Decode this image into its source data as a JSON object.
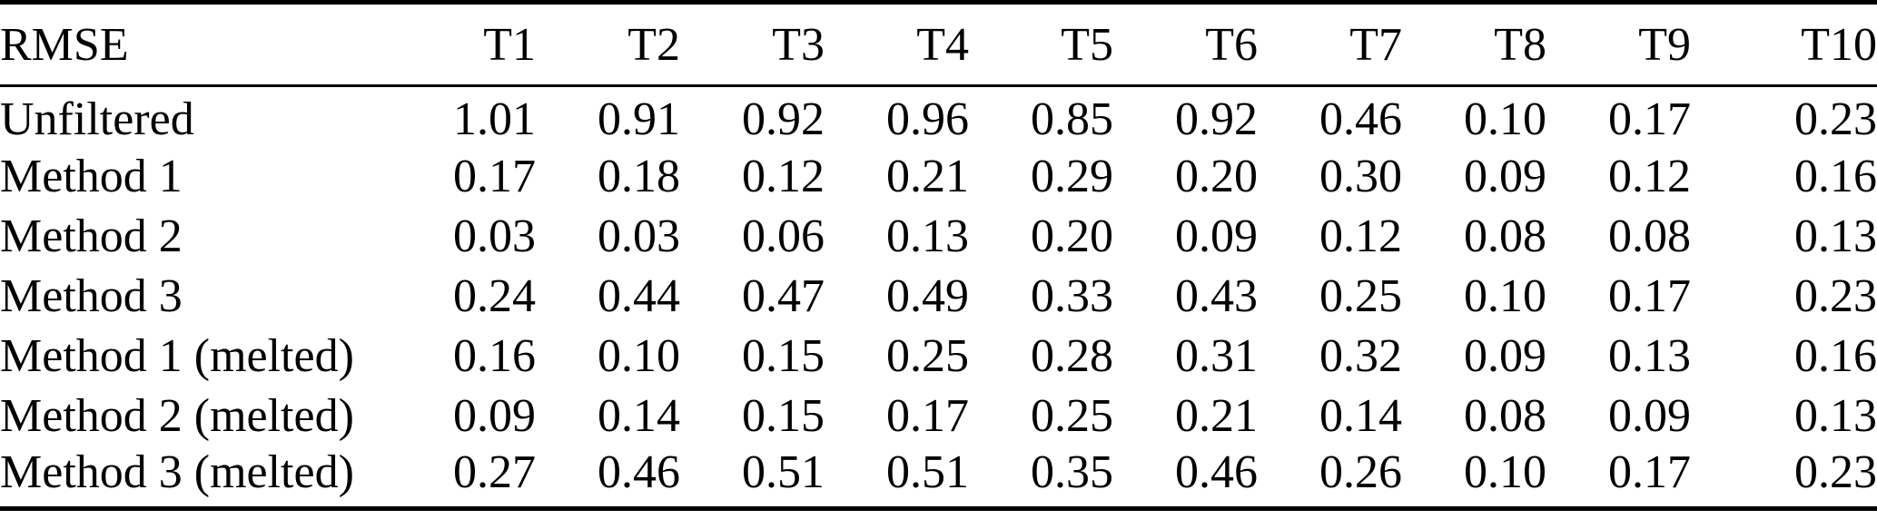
{
  "table": {
    "title": "RMSE",
    "header": [
      "RMSE",
      "T1",
      "T2",
      "T3",
      "T4",
      "T5",
      "T6",
      "T7",
      "T8",
      "T9",
      "T10"
    ],
    "rows": [
      {
        "label": "Unfiltered",
        "values": [
          "1.01",
          "0.91",
          "0.92",
          "0.96",
          "0.85",
          "0.92",
          "0.46",
          "0.10",
          "0.17",
          "0.23"
        ]
      },
      {
        "label": "Method 1",
        "values": [
          "0.17",
          "0.18",
          "0.12",
          "0.21",
          "0.29",
          "0.20",
          "0.30",
          "0.09",
          "0.12",
          "0.16"
        ]
      },
      {
        "label": "Method 2",
        "values": [
          "0.03",
          "0.03",
          "0.06",
          "0.13",
          "0.20",
          "0.09",
          "0.12",
          "0.08",
          "0.08",
          "0.13"
        ]
      },
      {
        "label": "Method 3",
        "values": [
          "0.24",
          "0.44",
          "0.47",
          "0.49",
          "0.33",
          "0.43",
          "0.25",
          "0.10",
          "0.17",
          "0.23"
        ]
      },
      {
        "label": "Method 1 (melted)",
        "values": [
          "0.16",
          "0.10",
          "0.15",
          "0.25",
          "0.28",
          "0.31",
          "0.32",
          "0.09",
          "0.13",
          "0.16"
        ]
      },
      {
        "label": "Method 2 (melted)",
        "values": [
          "0.09",
          "0.14",
          "0.15",
          "0.17",
          "0.25",
          "0.21",
          "0.14",
          "0.08",
          "0.09",
          "0.13"
        ]
      },
      {
        "label": "Method 3 (melted)",
        "values": [
          "0.27",
          "0.46",
          "0.51",
          "0.51",
          "0.35",
          "0.46",
          "0.26",
          "0.10",
          "0.17",
          "0.23"
        ]
      }
    ],
    "colors": {
      "text": "#000000",
      "background": "#ffffff",
      "rule": "#000000"
    }
  },
  "chart_data": {
    "type": "table",
    "title": "RMSE",
    "columns": [
      "RMSE",
      "T1",
      "T2",
      "T3",
      "T4",
      "T5",
      "T6",
      "T7",
      "T8",
      "T9",
      "T10"
    ],
    "rows": [
      [
        "Unfiltered",
        1.01,
        0.91,
        0.92,
        0.96,
        0.85,
        0.92,
        0.46,
        0.1,
        0.17,
        0.23
      ],
      [
        "Method 1",
        0.17,
        0.18,
        0.12,
        0.21,
        0.29,
        0.2,
        0.3,
        0.09,
        0.12,
        0.16
      ],
      [
        "Method 2",
        0.03,
        0.03,
        0.06,
        0.13,
        0.2,
        0.09,
        0.12,
        0.08,
        0.08,
        0.13
      ],
      [
        "Method 3",
        0.24,
        0.44,
        0.47,
        0.49,
        0.33,
        0.43,
        0.25,
        0.1,
        0.17,
        0.23
      ],
      [
        "Method 1 (melted)",
        0.16,
        0.1,
        0.15,
        0.25,
        0.28,
        0.31,
        0.32,
        0.09,
        0.13,
        0.16
      ],
      [
        "Method 2 (melted)",
        0.09,
        0.14,
        0.15,
        0.17,
        0.25,
        0.21,
        0.14,
        0.08,
        0.09,
        0.13
      ],
      [
        "Method 3 (melted)",
        0.27,
        0.46,
        0.51,
        0.51,
        0.35,
        0.46,
        0.26,
        0.1,
        0.17,
        0.23
      ]
    ]
  }
}
